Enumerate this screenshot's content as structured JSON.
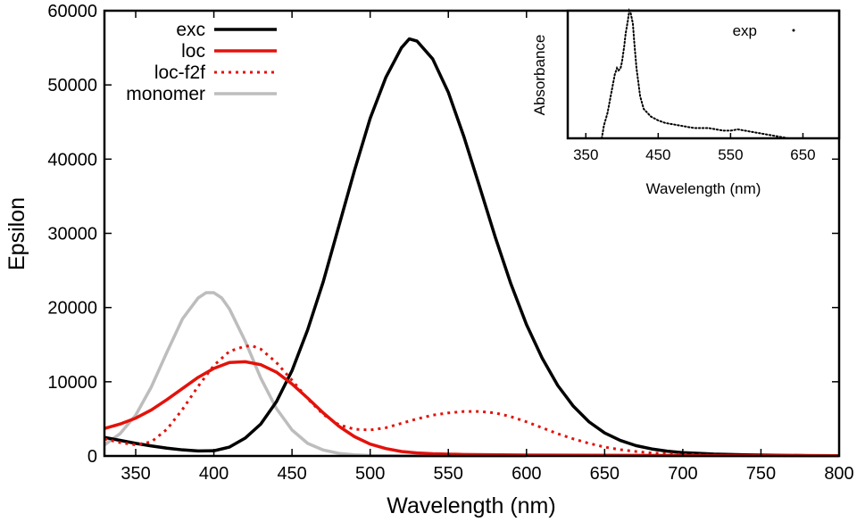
{
  "chart_data": [
    {
      "type": "line",
      "xlabel": "Wavelength (nm)",
      "ylabel": "Epsilon",
      "xlim": [
        330,
        800
      ],
      "ylim": [
        0,
        60000
      ],
      "xticks": [
        350,
        400,
        450,
        500,
        550,
        600,
        650,
        700,
        750,
        800
      ],
      "yticks": [
        0,
        10000,
        20000,
        30000,
        40000,
        50000,
        60000
      ],
      "legend_position": "top-left",
      "grid": false,
      "series": [
        {
          "name": "exc",
          "color": "#000000",
          "style": "solid",
          "x": [
            330,
            340,
            350,
            360,
            370,
            380,
            390,
            400,
            410,
            420,
            430,
            440,
            450,
            460,
            470,
            480,
            490,
            500,
            510,
            520,
            525,
            530,
            540,
            550,
            560,
            570,
            580,
            590,
            600,
            610,
            620,
            630,
            640,
            650,
            660,
            670,
            680,
            690,
            700,
            720,
            740,
            760,
            780,
            800
          ],
          "y": [
            2500,
            2100,
            1700,
            1350,
            1050,
            820,
            680,
            700,
            1200,
            2400,
            4300,
            7300,
            11500,
            17000,
            23500,
            31000,
            38500,
            45500,
            51000,
            55000,
            56200,
            55900,
            53500,
            49000,
            43000,
            36300,
            29500,
            23200,
            17700,
            13200,
            9500,
            6700,
            4600,
            3100,
            2100,
            1400,
            950,
            650,
            450,
            250,
            150,
            90,
            50,
            30
          ]
        },
        {
          "name": "loc",
          "color": "#e3120b",
          "style": "solid",
          "x": [
            330,
            340,
            350,
            360,
            370,
            380,
            390,
            400,
            410,
            420,
            430,
            440,
            450,
            460,
            470,
            480,
            490,
            500,
            510,
            520,
            530,
            540,
            560,
            600,
            700,
            800
          ],
          "y": [
            3700,
            4300,
            5100,
            6200,
            7600,
            9100,
            10600,
            11800,
            12600,
            12700,
            12300,
            11300,
            9700,
            7800,
            5800,
            4000,
            2600,
            1600,
            1000,
            600,
            400,
            300,
            200,
            120,
            60,
            30
          ]
        },
        {
          "name": "loc-f2f",
          "color": "#e3120b",
          "style": "dotted",
          "x": [
            330,
            340,
            350,
            360,
            370,
            380,
            390,
            400,
            410,
            420,
            425,
            430,
            440,
            450,
            460,
            470,
            480,
            490,
            500,
            510,
            520,
            530,
            540,
            550,
            560,
            570,
            580,
            590,
            600,
            610,
            620,
            630,
            640,
            650,
            660,
            670,
            680,
            700,
            720,
            740,
            760,
            780,
            800
          ],
          "y": [
            2300,
            1800,
            1500,
            1900,
            3600,
            6300,
            9400,
            12200,
            14100,
            14800,
            14800,
            14400,
            12600,
            10200,
            7700,
            5600,
            4200,
            3600,
            3500,
            3800,
            4400,
            5000,
            5500,
            5800,
            6000,
            6000,
            5800,
            5300,
            4600,
            3800,
            3000,
            2300,
            1700,
            1200,
            850,
            600,
            400,
            200,
            100,
            50,
            30,
            20,
            10
          ]
        },
        {
          "name": "monomer",
          "color": "#bdbdbd",
          "style": "solid",
          "x": [
            330,
            340,
            350,
            360,
            370,
            380,
            390,
            395,
            400,
            405,
            410,
            420,
            430,
            440,
            450,
            460,
            470,
            480,
            490,
            500,
            520,
            560,
            600
          ],
          "y": [
            1500,
            3000,
            5500,
            9300,
            14000,
            18500,
            21300,
            22000,
            22000,
            21300,
            19800,
            15500,
            10500,
            6400,
            3500,
            1700,
            800,
            350,
            150,
            60,
            20,
            5,
            0
          ]
        }
      ]
    },
    {
      "type": "scatter",
      "xlabel": "Wavelength (nm)",
      "ylabel": "Absorbance",
      "xlim": [
        325,
        700
      ],
      "ylim": [
        0,
        1
      ],
      "xticks": [
        350,
        450,
        550,
        650
      ],
      "legend_position": "top-right",
      "grid": false,
      "series": [
        {
          "name": "exp",
          "color": "#000000",
          "x": [
            372,
            375,
            380,
            385,
            390,
            393,
            395,
            398,
            400,
            403,
            405,
            408,
            410,
            412,
            415,
            417,
            420,
            423,
            425,
            428,
            430,
            435,
            440,
            450,
            460,
            470,
            480,
            490,
            500,
            510,
            520,
            530,
            540,
            550,
            560,
            570,
            580,
            590,
            600,
            610,
            620,
            630
          ],
          "y": [
            0.0,
            0.1,
            0.2,
            0.35,
            0.5,
            0.55,
            0.53,
            0.55,
            0.6,
            0.72,
            0.82,
            0.92,
            1.0,
            0.98,
            0.9,
            0.75,
            0.55,
            0.42,
            0.33,
            0.27,
            0.23,
            0.2,
            0.17,
            0.14,
            0.12,
            0.11,
            0.1,
            0.09,
            0.08,
            0.08,
            0.08,
            0.07,
            0.06,
            0.06,
            0.07,
            0.06,
            0.05,
            0.04,
            0.03,
            0.02,
            0.01,
            0.0
          ]
        }
      ]
    }
  ]
}
